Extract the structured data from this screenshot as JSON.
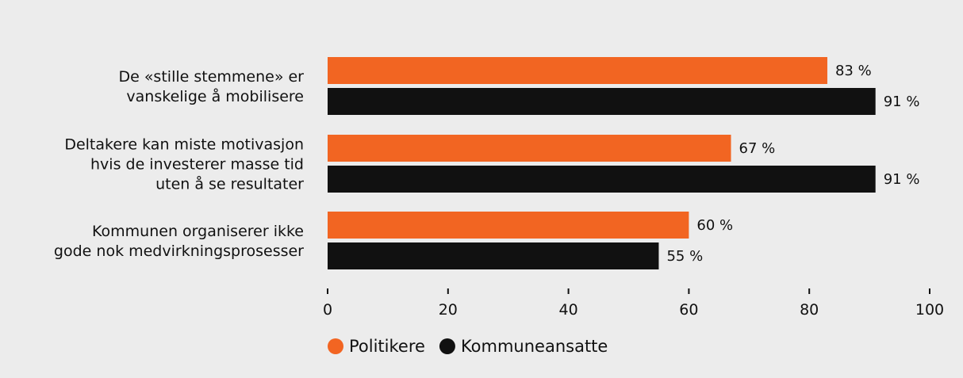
{
  "chart_data": {
    "type": "bar",
    "orientation": "horizontal",
    "categories": [
      [
        "De «stille stemmene» er",
        "vanskelige å mobilisere"
      ],
      [
        "Deltakere kan miste motivasjon",
        "hvis de investerer masse tid",
        "uten å se resultater"
      ],
      [
        "Kommunen organiserer ikke",
        "gode nok medvirkningsprosesser"
      ]
    ],
    "series": [
      {
        "name": "Politikere",
        "color": "#f26522",
        "values": [
          83,
          67,
          60
        ],
        "labels": [
          "83 %",
          "67 %",
          "60 %"
        ]
      },
      {
        "name": "Kommuneansatte",
        "color": "#111111",
        "values": [
          91,
          91,
          55
        ],
        "labels": [
          "91 %",
          "91 %",
          "55 %"
        ]
      }
    ],
    "xlim": [
      0,
      100
    ],
    "xticks": [
      "0",
      "20",
      "40",
      "60",
      "80",
      "100"
    ],
    "legend": "bottom-left"
  }
}
